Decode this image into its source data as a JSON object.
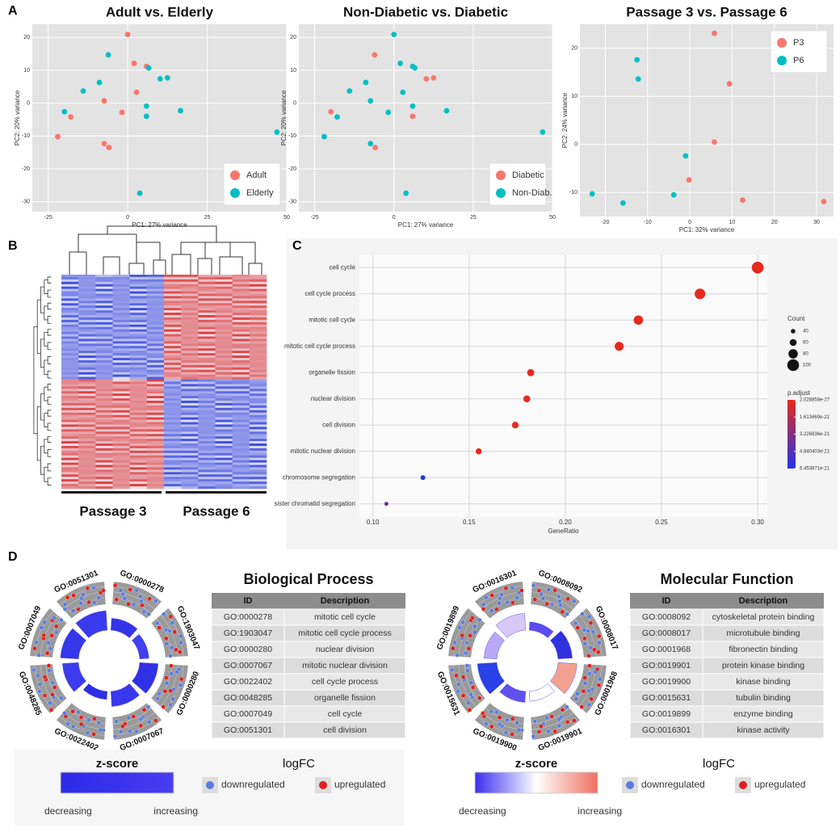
{
  "panel_labels": [
    "A",
    "B",
    "C",
    "D"
  ],
  "chart_data": [
    {
      "type": "scatter",
      "title": "Adult vs. Elderly",
      "xlabel": "PC1: 27% variance",
      "ylabel": "PC2: 20% variance",
      "xlim": [
        -30,
        50
      ],
      "ylim": [
        -33,
        24
      ],
      "xticks": [
        -25,
        0,
        25,
        50
      ],
      "yticks": [
        -30,
        -20,
        -10,
        0,
        10,
        20
      ],
      "grid": true,
      "legend": "lower right",
      "series": [
        {
          "name": "Adult",
          "color": "#f8766d",
          "x": [
            0,
            2,
            5.9,
            2.8,
            -7.4,
            -1.8,
            -17.9,
            -7.4,
            -5.9,
            -22
          ],
          "values": [
            20.9,
            12.1,
            11.2,
            3.3,
            0.7,
            -2.8,
            -4.2,
            -12.3,
            -13.5,
            -10.2
          ]
        },
        {
          "name": "Elderly",
          "color": "#00bfc4",
          "x": [
            -6.1,
            6.6,
            10.2,
            12.5,
            -8.9,
            -14,
            5.9,
            5.9,
            16.6,
            -19.9,
            46.9,
            3.8
          ],
          "values": [
            14.7,
            10.7,
            7.4,
            7.7,
            6.3,
            3.7,
            -0.9,
            -4,
            -2.3,
            -2.6,
            -8.8,
            -27.4
          ]
        }
      ]
    },
    {
      "type": "scatter",
      "title": "Non-Diabetic vs. Diabetic",
      "xlabel": "PC1: 27% variance",
      "ylabel": "PC2: 20% variance",
      "xlim": [
        -30,
        50
      ],
      "ylim": [
        -33,
        24
      ],
      "xticks": [
        -25,
        0,
        25,
        50
      ],
      "yticks": [
        -30,
        -20,
        -10,
        0,
        10,
        20
      ],
      "grid": true,
      "legend": "lower right",
      "series": [
        {
          "name": "Diabetic",
          "color": "#f8766d",
          "x": [
            -6.1,
            10.2,
            12.5,
            5.9,
            -5.9,
            -19.9
          ],
          "values": [
            14.7,
            7.4,
            7.7,
            -4,
            -13.5,
            -2.6
          ]
        },
        {
          "name": "Non-Diab.",
          "color": "#00bfc4",
          "x": [
            0,
            2,
            5.9,
            6.6,
            -8.9,
            -14,
            -7.4,
            -1.8,
            5.9,
            16.6,
            -7.4,
            -17.9,
            -22,
            46.9,
            3.8,
            2.8
          ],
          "values": [
            20.9,
            12.1,
            11.2,
            10.7,
            6.3,
            3.7,
            0.7,
            -2.8,
            -0.9,
            -2.3,
            -12.3,
            -4.2,
            -10.2,
            -8.8,
            -27.4,
            3.3
          ]
        }
      ]
    },
    {
      "type": "scatter",
      "title": "Passage 3 vs. Passage 6",
      "xlabel": "PC1: 32% variance",
      "ylabel": "PC2: 24% variance",
      "xlim": [
        -26,
        34
      ],
      "ylim": [
        -15,
        25
      ],
      "xticks": [
        -20,
        -10,
        0,
        10,
        20,
        30
      ],
      "yticks": [
        -10,
        0,
        10,
        20
      ],
      "grid": true,
      "legend": "upper right",
      "series": [
        {
          "name": "P3",
          "color": "#f8766d",
          "x": [
            5.8,
            9.4,
            5.8,
            -0.2,
            12.5,
            31.7
          ],
          "values": [
            23.1,
            12.6,
            0.5,
            -7.4,
            -11.6,
            -11.9
          ]
        },
        {
          "name": "P6",
          "color": "#00bfc4",
          "x": [
            -12.5,
            -12.2,
            -1,
            -23.1,
            -15.8,
            -3.8
          ],
          "values": [
            17.6,
            13.6,
            -2.4,
            -10.3,
            -12.2,
            -10.5
          ]
        }
      ]
    },
    {
      "type": "dot",
      "xlabel": "GeneRatio",
      "categories": [
        "cell cycle",
        "cell cycle process",
        "mitotic cell cycle",
        "mitotic cell cycle process",
        "organelle fission",
        "nuclear division",
        "cell division",
        "mitotic nuclear division",
        "chromosome segregation",
        "sister chromatid segregation"
      ],
      "values": [
        0.3,
        0.27,
        0.238,
        0.228,
        0.182,
        0.18,
        0.174,
        0.155,
        0.126,
        0.107
      ],
      "counts": [
        100,
        90,
        80,
        76,
        61,
        60,
        58,
        52,
        42,
        36
      ],
      "p_adjust": [
        2.1e-27,
        5e-26,
        1e-25,
        4e-25,
        2e-24,
        3e-24,
        5e-24,
        2e-23,
        6.2e-21,
        4.2e-21
      ],
      "xlim": [
        0.093,
        0.305
      ],
      "xticks": [
        {
          "value": 0.1,
          "label": "0.10"
        },
        0.15,
        {
          "value": 0.2,
          "label": "0.20"
        },
        0.25,
        {
          "value": 0.3,
          "label": "0.30"
        }
      ],
      "grid": true,
      "size_legend": {
        "title": "Count",
        "values": [
          40,
          60,
          80,
          100
        ]
      },
      "color_legend": {
        "title": "p.adjust",
        "ticks": [
          2.028858e-27,
          1.613469e-21,
          3.226836e-21,
          4.840403e-21,
          6.453871e-21
        ],
        "colors": [
          "#e8291c",
          "#2233e8"
        ]
      }
    }
  ],
  "heatmap": {
    "column_groups": [
      "Passage 3",
      "Passage 6"
    ]
  },
  "go_panels": [
    {
      "title": "Biological Process",
      "header": [
        "ID",
        "Description"
      ],
      "rows": [
        [
          "GO:0000278",
          "mitotic cell cycle"
        ],
        [
          "GO:1903047",
          "mitotic cell cycle process"
        ],
        [
          "GO:0000280",
          "nuclear division"
        ],
        [
          "GO:0007067",
          "mitotic nuclear division"
        ],
        [
          "GO:0022402",
          "cell cycle process"
        ],
        [
          "GO:0048285",
          "organelle fission"
        ],
        [
          "GO:0007049",
          "cell cycle"
        ],
        [
          "GO:0051301",
          "cell division"
        ]
      ],
      "circle_labels": [
        "GO:0051301",
        "GO:0000278",
        "GO:1903047",
        "GO:0000280",
        "GO:0007067",
        "GO:0022402",
        "GO:0048285",
        "GO:0007049"
      ],
      "legend": {
        "zscore": "z-score",
        "decreasing": "decreasing",
        "increasing": "increasing",
        "logfc": "logFC",
        "down": "downregulated",
        "up": "upregulated"
      }
    },
    {
      "title": "Molecular Function",
      "header": [
        "ID",
        "Description"
      ],
      "rows": [
        [
          "GO:0008092",
          "cytoskeletal protein binding"
        ],
        [
          "GO:0008017",
          "microtubule binding"
        ],
        [
          "GO:0001968",
          "fibronectin binding"
        ],
        [
          "GO:0019901",
          "protein kinase binding"
        ],
        [
          "GO:0019900",
          "kinase binding"
        ],
        [
          "GO:0015631",
          "tubulin binding"
        ],
        [
          "GO:0019899",
          "enzyme binding"
        ],
        [
          "GO:0016301",
          "kinase activity"
        ]
      ],
      "circle_labels": [
        "GO:0016301",
        "GO:0008092",
        "GO:0008017",
        "GO:0001968",
        "GO:0019901",
        "GO:0019900",
        "GO:0015631",
        "GO:0019899"
      ],
      "legend": {
        "zscore": "z-score",
        "decreasing": "decreasing",
        "increasing": "increasing",
        "logfc": "logFC",
        "down": "downregulated",
        "up": "upregulated"
      }
    }
  ]
}
